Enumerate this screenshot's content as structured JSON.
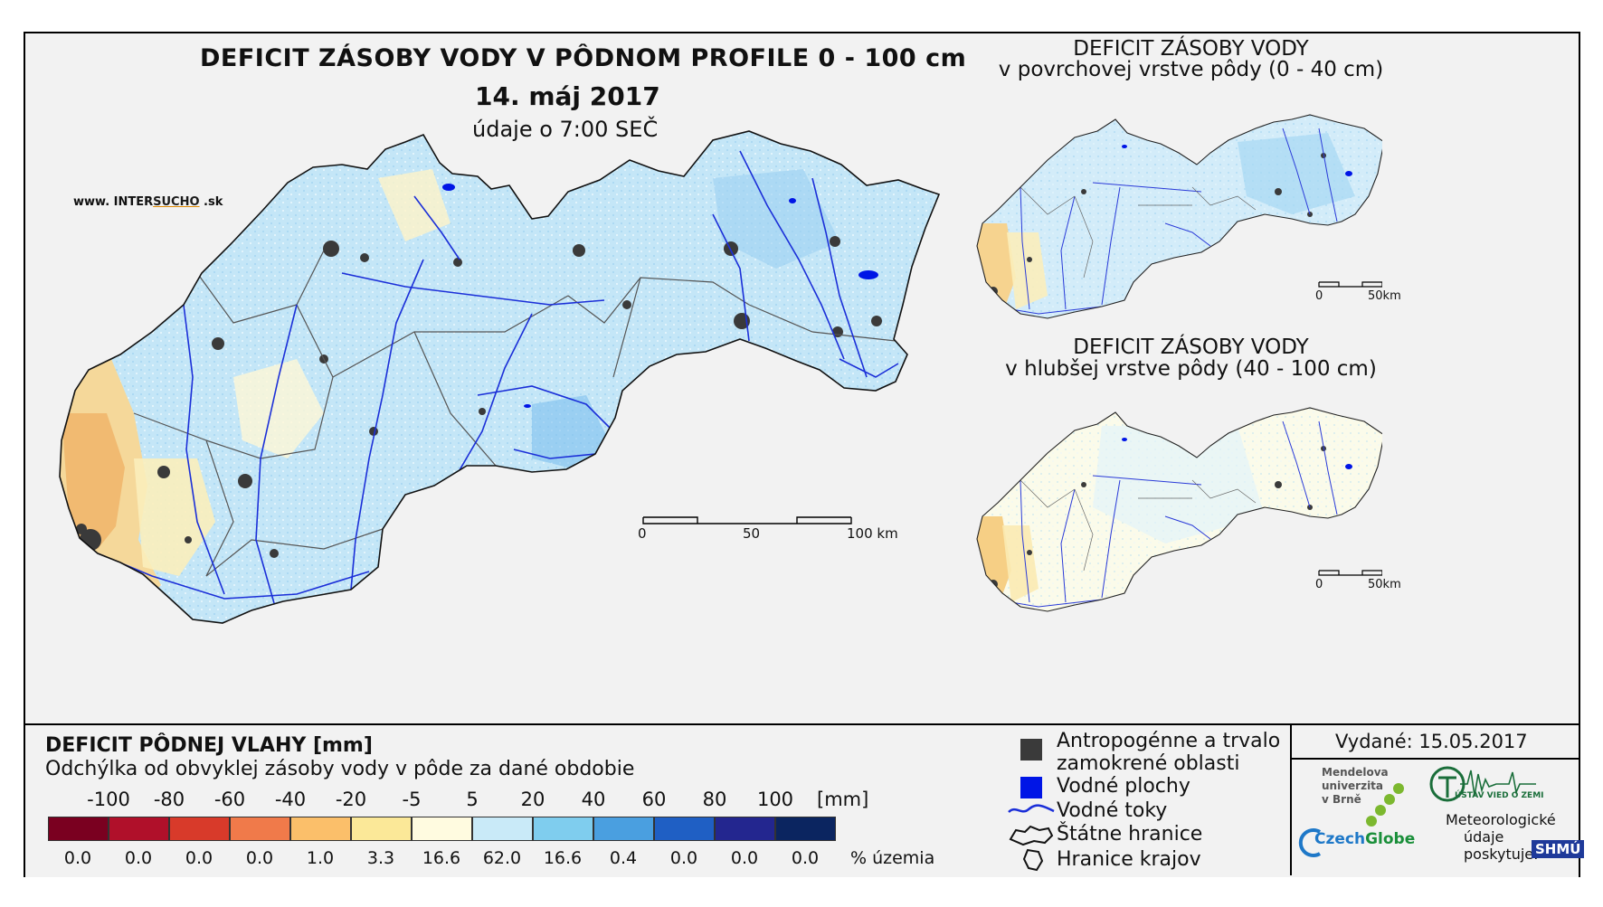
{
  "main_map": {
    "title": "DEFICIT ZÁSOBY VODY V PÔDNOM PROFILE 0 - 100 cm",
    "date": "14. máj 2017",
    "time_note": "údaje o 7:00 SEČ",
    "website_prefix": "www. INTER",
    "website_accent": "SUCHO",
    "website_suffix": " .sk",
    "scale_labels": [
      "0",
      "50",
      "100 km"
    ]
  },
  "mini_map_top": {
    "title_line1": "DEFICIT ZÁSOBY VODY",
    "title_line2": "v povrchovej vrstve pôdy (0 - 40 cm)",
    "scale_labels": [
      "0",
      "50km"
    ]
  },
  "mini_map_bottom": {
    "title_line1": "DEFICIT ZÁSOBY VODY",
    "title_line2": "v hlubšej vrstve pôdy (40 - 100 cm)",
    "scale_labels": [
      "0",
      "50km"
    ]
  },
  "legend": {
    "heading": "DEFICIT PÔDNEJ VLAHY [mm]",
    "subheading": "Odchýlka od obvyklej zásoby vody v pôde za dané obdobie",
    "ticks": [
      "-100",
      "-80",
      "-60",
      "-40",
      "-20",
      "-5",
      "5",
      "20",
      "40",
      "60",
      "80",
      "100"
    ],
    "unit": "[mm]",
    "colors": [
      "#7a0020",
      "#b0102a",
      "#d83a2a",
      "#f07a4a",
      "#fbbf6a",
      "#fbe898",
      "#fffbe0",
      "#c9eaf8",
      "#7fcdee",
      "#4a9fe0",
      "#1f5fc4",
      "#23268f",
      "#0b2560"
    ],
    "percentages": [
      "0.0",
      "0.0",
      "0.0",
      "0.0",
      "1.0",
      "3.3",
      "16.6",
      "62.0",
      "16.6",
      "0.4",
      "0.0",
      "0.0",
      "0.0"
    ],
    "pct_unit": "% územia"
  },
  "symbols": {
    "urban_line1": "Antropogénne a trvalo",
    "urban_line2": "zamokrené oblasti",
    "water_bodies": "Vodné plochy",
    "rivers": "Vodné toky",
    "state_border": "Štátne hranice",
    "region_border": "Hranice krajov"
  },
  "footer": {
    "issued": "Vydané: 15.05.2017",
    "mendel_line1": "Mendelova",
    "mendel_line2": "univerzita",
    "mendel_line3": "v Brně",
    "czechglobe_a": "Czech",
    "czechglobe_b": "Globe",
    "uvz": "ÚSTAV VIED O ZEMI",
    "meteo_line1": "Meteorologické",
    "meteo_line2": "údaje",
    "meteo_line3": "poskytuje:",
    "shmu": "SHMÚ"
  }
}
